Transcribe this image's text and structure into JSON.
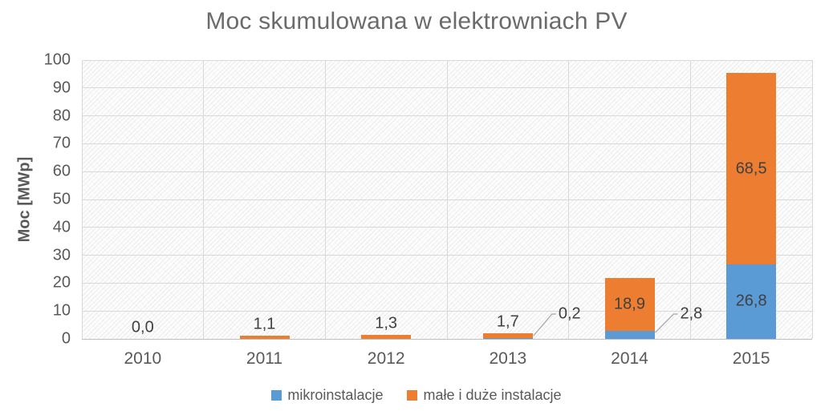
{
  "chart_data": {
    "type": "bar",
    "stacked": true,
    "title": "Moc skumulowana w elektrowniach PV",
    "ylabel": "Moc [MWp]",
    "xlabel": "",
    "categories": [
      "2010",
      "2011",
      "2012",
      "2013",
      "2014",
      "2015"
    ],
    "series": [
      {
        "name": "mikroinstalacje",
        "color": "#5b9bd5",
        "values": [
          0.0,
          0.0,
          0.0,
          0.2,
          2.8,
          26.8
        ]
      },
      {
        "name": "małe i duże instalacje",
        "color": "#ed7d31",
        "values": [
          0.0,
          1.1,
          1.3,
          1.7,
          18.9,
          68.5
        ]
      }
    ],
    "ylim": [
      0,
      100
    ],
    "ytick_step": 10,
    "ytick_labels": [
      "0",
      "10",
      "20",
      "30",
      "40",
      "50",
      "60",
      "70",
      "80",
      "90",
      "100"
    ],
    "grid": true,
    "legend_position": "bottom",
    "decimal_separator": ",",
    "data_labels": [
      {
        "text": "0,0",
        "category": "2010",
        "series": "małe i duże instalacje",
        "placement": "outside-top"
      },
      {
        "text": "1,1",
        "category": "2011",
        "series": "małe i duże instalacje",
        "placement": "outside-top"
      },
      {
        "text": "1,3",
        "category": "2012",
        "series": "małe i duże instalacje",
        "placement": "outside-top"
      },
      {
        "text": "1,7",
        "category": "2013",
        "series": "małe i duże instalacje",
        "placement": "outside-top"
      },
      {
        "text": "0,2",
        "category": "2013",
        "series": "mikroinstalacje",
        "placement": "callout-right"
      },
      {
        "text": "18,9",
        "category": "2014",
        "series": "małe i duże instalacje",
        "placement": "inside"
      },
      {
        "text": "2,8",
        "category": "2014",
        "series": "mikroinstalacje",
        "placement": "callout-right"
      },
      {
        "text": "68,5",
        "category": "2015",
        "series": "małe i duże instalacje",
        "placement": "inside"
      },
      {
        "text": "26,8",
        "category": "2015",
        "series": "mikroinstalacje",
        "placement": "inside"
      }
    ],
    "colors": {
      "title": "#6b6b6b",
      "axis_text": "#595959",
      "label_text": "#404040",
      "gridline": "#d9d9d9",
      "axis_line": "#bfbfbf",
      "leader_line": "#a6a6a6"
    }
  }
}
